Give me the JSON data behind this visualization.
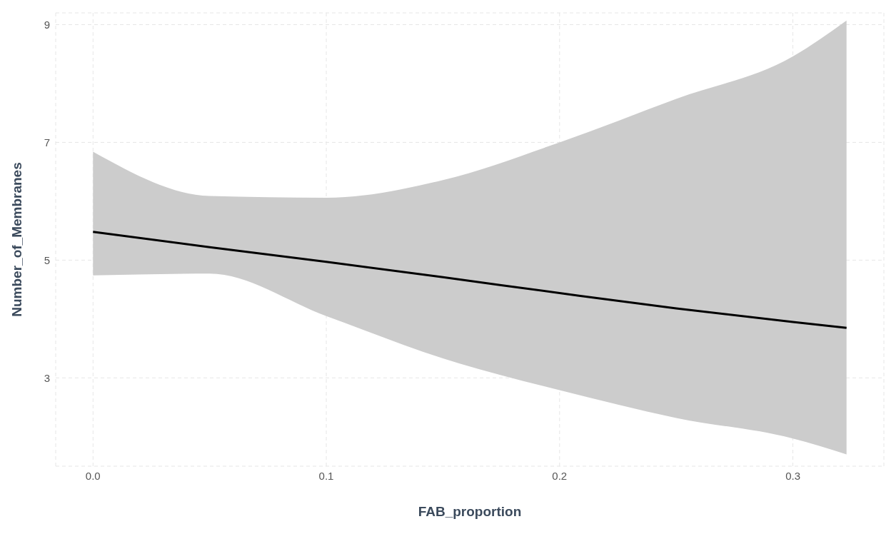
{
  "chart_data": {
    "type": "line",
    "xlabel": "FAB_proportion",
    "ylabel": "Number_of_Membranes",
    "x": [
      0,
      0.05,
      0.1,
      0.15,
      0.2,
      0.25,
      0.3,
      0.323
    ],
    "series": [
      {
        "color": "#000000",
        "values": [
          5.48,
          5.22,
          4.97,
          4.71,
          4.44,
          4.18,
          3.95,
          3.85
        ],
        "lower": [
          4.74,
          4.77,
          4.05,
          3.33,
          2.79,
          2.32,
          1.97,
          1.7
        ],
        "upper": [
          6.84,
          6.09,
          6.06,
          6.36,
          7.0,
          7.74,
          8.46,
          9.07
        ]
      }
    ],
    "xlim": [
      -0.016,
      0.339
    ],
    "xticks": [
      {
        "value": 0,
        "label": "0.0"
      },
      0.1,
      0.2,
      0.3
    ],
    "ylim": [
      1.5,
      9.2
    ],
    "yticks": [
      3,
      5,
      7,
      9
    ],
    "grid": true,
    "marker": "none",
    "line_style": "solid"
  }
}
